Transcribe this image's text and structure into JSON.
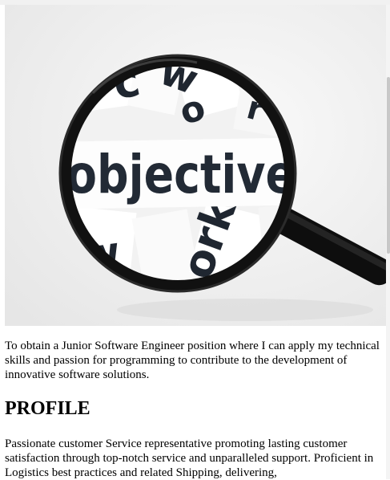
{
  "hero": {
    "image_word": "objective",
    "icon": "magnifying-glass-icon"
  },
  "objective": {
    "text": "To obtain a Junior Software Engineer position where I can apply my technical skills and passion for programming to contribute to the development of innovative software solutions."
  },
  "profile": {
    "heading": "PROFILE",
    "text": "Passionate customer Service representative promoting lasting customer satisfaction through top-notch service and unparalleled support. Proficient in Logistics best practices and related Shipping, delivering,"
  },
  "colors": {
    "background": "#ffffff",
    "text": "#000000",
    "lens_rim": "#111111"
  }
}
